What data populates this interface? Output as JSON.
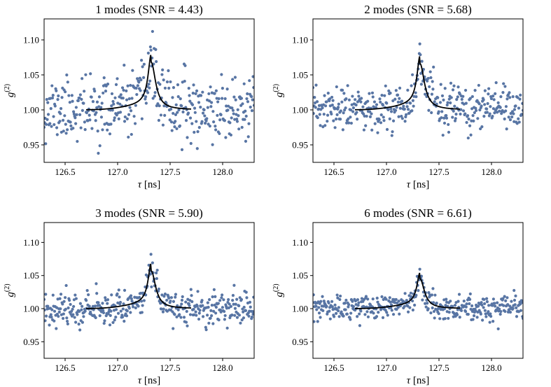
{
  "chart_data": [
    {
      "type": "scatter",
      "title": "1 modes (SNR = 4.43)",
      "xlabel_symbol": "τ",
      "xlabel_unit": " [ns]",
      "ylabel_base": "g",
      "ylabel_sup": "(2)",
      "xlim": [
        126.3,
        128.3
      ],
      "ylim": [
        0.925,
        1.13
      ],
      "xticks": [
        "126.5",
        "127.0",
        "127.5",
        "128.0"
      ],
      "xtick_values": [
        126.5,
        127.0,
        127.5,
        128.0
      ],
      "yticks": [
        "0.95",
        "1.00",
        "1.05",
        "1.10"
      ],
      "ytick_values": [
        0.95,
        1.0,
        1.05,
        1.1
      ],
      "points": {
        "x_range": [
          126.3,
          128.3
        ],
        "count": 400,
        "noise_sigma": 0.022,
        "peak_x": 127.32,
        "peak_amp": 0.068,
        "seed": 11
      },
      "fit": {
        "x_range": [
          126.7,
          127.7
        ],
        "peak_x": 127.32,
        "peak_height": 1.068,
        "baseline": 1.0,
        "plateau_max": 1.012
      },
      "color": "#5875a4"
    },
    {
      "type": "scatter",
      "title": "2 modes (SNR = 5.68)",
      "xlabel_symbol": "τ",
      "xlabel_unit": " [ns]",
      "ylabel_base": "g",
      "ylabel_sup": "(2)",
      "xlim": [
        126.3,
        128.3
      ],
      "ylim": [
        0.925,
        1.13
      ],
      "xticks": [
        "126.5",
        "127.0",
        "127.5",
        "128.0"
      ],
      "xtick_values": [
        126.5,
        127.0,
        127.5,
        128.0
      ],
      "yticks": [
        "0.95",
        "1.00",
        "1.05",
        "1.10"
      ],
      "ytick_values": [
        0.95,
        1.0,
        1.05,
        1.1
      ],
      "points": {
        "x_range": [
          126.3,
          128.3
        ],
        "count": 400,
        "noise_sigma": 0.016,
        "peak_x": 127.32,
        "peak_amp": 0.066,
        "seed": 23
      },
      "fit": {
        "x_range": [
          126.7,
          127.7
        ],
        "peak_x": 127.32,
        "peak_height": 1.066,
        "baseline": 1.0,
        "plateau_max": 1.012
      },
      "color": "#5875a4"
    },
    {
      "type": "scatter",
      "title": "3 modes (SNR = 5.90)",
      "xlabel_symbol": "τ",
      "xlabel_unit": " [ns]",
      "ylabel_base": "g",
      "ylabel_sup": "(2)",
      "xlim": [
        126.3,
        128.3
      ],
      "ylim": [
        0.925,
        1.13
      ],
      "xticks": [
        "126.5",
        "127.0",
        "127.5",
        "128.0"
      ],
      "xtick_values": [
        126.5,
        127.0,
        127.5,
        128.0
      ],
      "yticks": [
        "0.95",
        "1.00",
        "1.05",
        "1.10"
      ],
      "ytick_values": [
        0.95,
        1.0,
        1.05,
        1.1
      ],
      "points": {
        "x_range": [
          126.3,
          128.3
        ],
        "count": 400,
        "noise_sigma": 0.012,
        "peak_x": 127.32,
        "peak_amp": 0.058,
        "seed": 37
      },
      "fit": {
        "x_range": [
          126.7,
          127.7
        ],
        "peak_x": 127.32,
        "peak_height": 1.057,
        "baseline": 1.0,
        "plateau_max": 1.012
      },
      "color": "#5875a4"
    },
    {
      "type": "scatter",
      "title": "6 modes (SNR = 6.61)",
      "xlabel_symbol": "τ",
      "xlabel_unit": " [ns]",
      "ylabel_base": "g",
      "ylabel_sup": "(2)",
      "xlim": [
        126.3,
        128.3
      ],
      "ylim": [
        0.925,
        1.13
      ],
      "xticks": [
        "126.5",
        "127.0",
        "127.5",
        "128.0"
      ],
      "xtick_values": [
        126.5,
        127.0,
        127.5,
        128.0
      ],
      "yticks": [
        "0.95",
        "1.00",
        "1.05",
        "1.10"
      ],
      "ytick_values": [
        0.95,
        1.0,
        1.05,
        1.1
      ],
      "points": {
        "x_range": [
          126.3,
          128.3
        ],
        "count": 400,
        "noise_sigma": 0.009,
        "peak_x": 127.32,
        "peak_amp": 0.046,
        "seed": 53
      },
      "fit": {
        "x_range": [
          126.7,
          127.7
        ],
        "peak_x": 127.32,
        "peak_height": 1.045,
        "baseline": 1.0,
        "plateau_max": 1.01
      },
      "color": "#5875a4"
    }
  ]
}
